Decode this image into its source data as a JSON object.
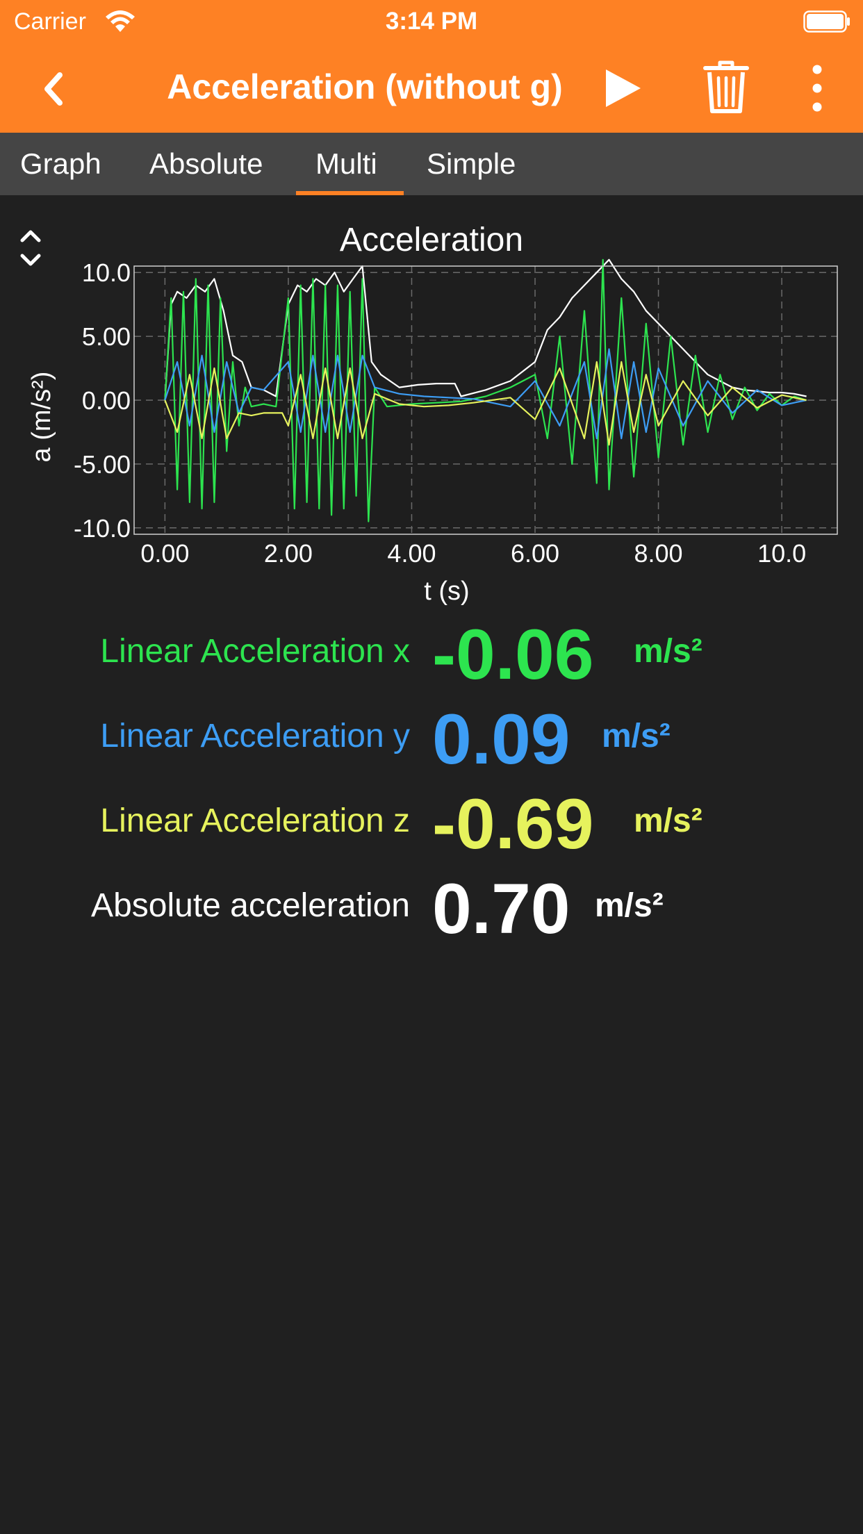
{
  "status": {
    "carrier": "Carrier",
    "time": "3:14 PM"
  },
  "navbar": {
    "title": "Acceleration (without g)",
    "accent_color": "#fe8124"
  },
  "tabs": [
    {
      "label": "Graph"
    },
    {
      "label": "Absolute"
    },
    {
      "label": "Multi",
      "selected": true
    },
    {
      "label": "Simple"
    }
  ],
  "chart_data": {
    "type": "line",
    "title": "Acceleration",
    "xlabel": "t (s)",
    "ylabel": "a (m/s²)",
    "xlim": [
      -0.5,
      10.9
    ],
    "ylim": [
      -10.5,
      10.5
    ],
    "x_ticks": [
      "0.00",
      "2.00",
      "4.00",
      "6.00",
      "8.00",
      "10.0"
    ],
    "y_ticks": [
      "10.0",
      "5.00",
      "0.00",
      "-5.00",
      "-10.0"
    ],
    "grid": true,
    "series": [
      {
        "color": "#ffffff",
        "x": [
          0.0,
          0.1,
          0.2,
          0.35,
          0.5,
          0.65,
          0.8,
          0.95,
          1.1,
          1.25,
          1.4,
          1.6,
          1.8,
          2.0,
          2.15,
          2.3,
          2.45,
          2.6,
          2.75,
          2.9,
          3.05,
          3.2,
          3.35,
          3.5,
          3.8,
          4.1,
          4.4,
          4.7,
          4.8,
          5.2,
          5.6,
          6.0,
          6.2,
          6.4,
          6.6,
          6.8,
          7.0,
          7.2,
          7.4,
          7.6,
          7.8,
          8.0,
          8.2,
          8.4,
          8.6,
          8.8,
          9.0,
          9.2,
          9.4,
          9.6,
          9.8,
          10.0,
          10.2,
          10.4
        ],
        "y": [
          0.0,
          7.5,
          8.5,
          8.0,
          9.0,
          8.5,
          9.5,
          7.0,
          3.5,
          3.0,
          1.0,
          0.8,
          0.3,
          7.5,
          9.0,
          8.5,
          9.5,
          9.0,
          10.0,
          8.5,
          9.5,
          10.5,
          3.0,
          2.0,
          1.0,
          1.2,
          1.3,
          1.3,
          0.3,
          0.8,
          1.5,
          3.0,
          5.5,
          6.5,
          8.0,
          9.0,
          10.0,
          11.0,
          9.5,
          8.5,
          7.0,
          6.0,
          5.0,
          4.0,
          3.0,
          2.0,
          1.5,
          1.0,
          0.8,
          0.7,
          0.6,
          0.6,
          0.5,
          0.3
        ]
      },
      {
        "name": "Linear Acceleration x",
        "color": "#2de44f",
        "x": [
          0.0,
          0.1,
          0.2,
          0.3,
          0.4,
          0.5,
          0.6,
          0.7,
          0.8,
          0.9,
          1.0,
          1.1,
          1.2,
          1.3,
          1.4,
          1.6,
          1.8,
          2.0,
          2.1,
          2.2,
          2.3,
          2.4,
          2.5,
          2.6,
          2.7,
          2.8,
          2.9,
          3.0,
          3.1,
          3.2,
          3.3,
          3.4,
          3.6,
          4.0,
          4.4,
          4.8,
          5.2,
          5.6,
          6.0,
          6.2,
          6.4,
          6.6,
          6.8,
          7.0,
          7.1,
          7.2,
          7.4,
          7.6,
          7.8,
          8.0,
          8.2,
          8.4,
          8.6,
          8.8,
          9.0,
          9.2,
          9.4,
          9.6,
          9.8,
          10.0,
          10.2,
          10.4
        ],
        "y": [
          0.0,
          8.0,
          -7.0,
          8.5,
          -8.0,
          9.5,
          -8.5,
          9.0,
          -8.0,
          8.0,
          -4.0,
          3.0,
          -2.0,
          1.0,
          -0.5,
          -0.3,
          -0.5,
          8.0,
          -8.5,
          9.0,
          -8.0,
          9.5,
          -8.5,
          9.0,
          -9.0,
          9.0,
          -8.5,
          8.5,
          -7.5,
          9.5,
          -9.5,
          1.0,
          -0.5,
          -0.3,
          -0.2,
          -0.1,
          0.3,
          1.0,
          2.0,
          -3.0,
          5.0,
          -5.0,
          7.0,
          -6.5,
          11.0,
          -7.0,
          8.0,
          -6.0,
          6.0,
          -4.5,
          5.0,
          -3.5,
          3.5,
          -2.5,
          2.0,
          -1.5,
          1.0,
          -0.8,
          0.5,
          -0.4,
          0.3,
          0.0
        ]
      },
      {
        "name": "Linear Acceleration y",
        "color": "#3d9df4",
        "x": [
          0.0,
          0.2,
          0.4,
          0.6,
          0.8,
          1.0,
          1.2,
          1.4,
          1.6,
          2.0,
          2.2,
          2.4,
          2.6,
          2.8,
          3.0,
          3.2,
          3.4,
          3.8,
          4.2,
          4.6,
          5.0,
          5.6,
          6.0,
          6.4,
          6.8,
          7.0,
          7.2,
          7.4,
          7.6,
          7.8,
          8.0,
          8.4,
          8.8,
          9.2,
          9.6,
          10.0,
          10.4
        ],
        "y": [
          0.0,
          3.0,
          -2.0,
          3.5,
          -2.5,
          3.0,
          -1.0,
          1.0,
          0.8,
          3.0,
          -2.5,
          3.5,
          -2.5,
          3.5,
          -2.5,
          3.5,
          1.0,
          0.5,
          0.3,
          0.2,
          0.1,
          -0.5,
          1.5,
          -2.0,
          3.0,
          -3.0,
          4.0,
          -3.0,
          3.0,
          -2.5,
          2.5,
          -2.0,
          1.5,
          -1.0,
          0.8,
          -0.4,
          0.0
        ]
      },
      {
        "name": "Linear Acceleration z",
        "color": "#e6f25d",
        "x": [
          0.0,
          0.2,
          0.4,
          0.6,
          0.8,
          1.0,
          1.2,
          1.4,
          1.6,
          1.9,
          2.0,
          2.2,
          2.4,
          2.6,
          2.8,
          3.0,
          3.2,
          3.4,
          3.8,
          4.2,
          4.6,
          5.0,
          5.6,
          6.0,
          6.4,
          6.8,
          7.0,
          7.2,
          7.4,
          7.6,
          7.8,
          8.0,
          8.4,
          8.8,
          9.2,
          9.6,
          10.0,
          10.4
        ],
        "y": [
          0.0,
          -2.5,
          2.0,
          -3.0,
          2.5,
          -3.0,
          -1.0,
          -1.2,
          -1.0,
          -1.0,
          -2.0,
          2.0,
          -3.0,
          2.5,
          -3.0,
          2.5,
          -3.0,
          0.5,
          -0.3,
          -0.5,
          -0.4,
          -0.2,
          0.2,
          -1.5,
          2.5,
          -3.0,
          3.0,
          -3.5,
          3.0,
          -2.5,
          2.0,
          -2.0,
          1.5,
          -1.2,
          1.0,
          -0.6,
          0.4,
          0.0
        ]
      }
    ]
  },
  "readouts": [
    {
      "label": "Linear Acceleration x",
      "value": "-0.06",
      "unit": "m/s²",
      "color": "#2de44f"
    },
    {
      "label": "Linear Acceleration y",
      "value": "0.09",
      "unit": "m/s²",
      "color": "#3d9df4"
    },
    {
      "label": "Linear Acceleration z",
      "value": "-0.69",
      "unit": "m/s²",
      "color": "#e6f25d"
    },
    {
      "label": "Absolute acceleration",
      "value": "0.70",
      "unit": "m/s²",
      "color": "#ffffff"
    }
  ]
}
